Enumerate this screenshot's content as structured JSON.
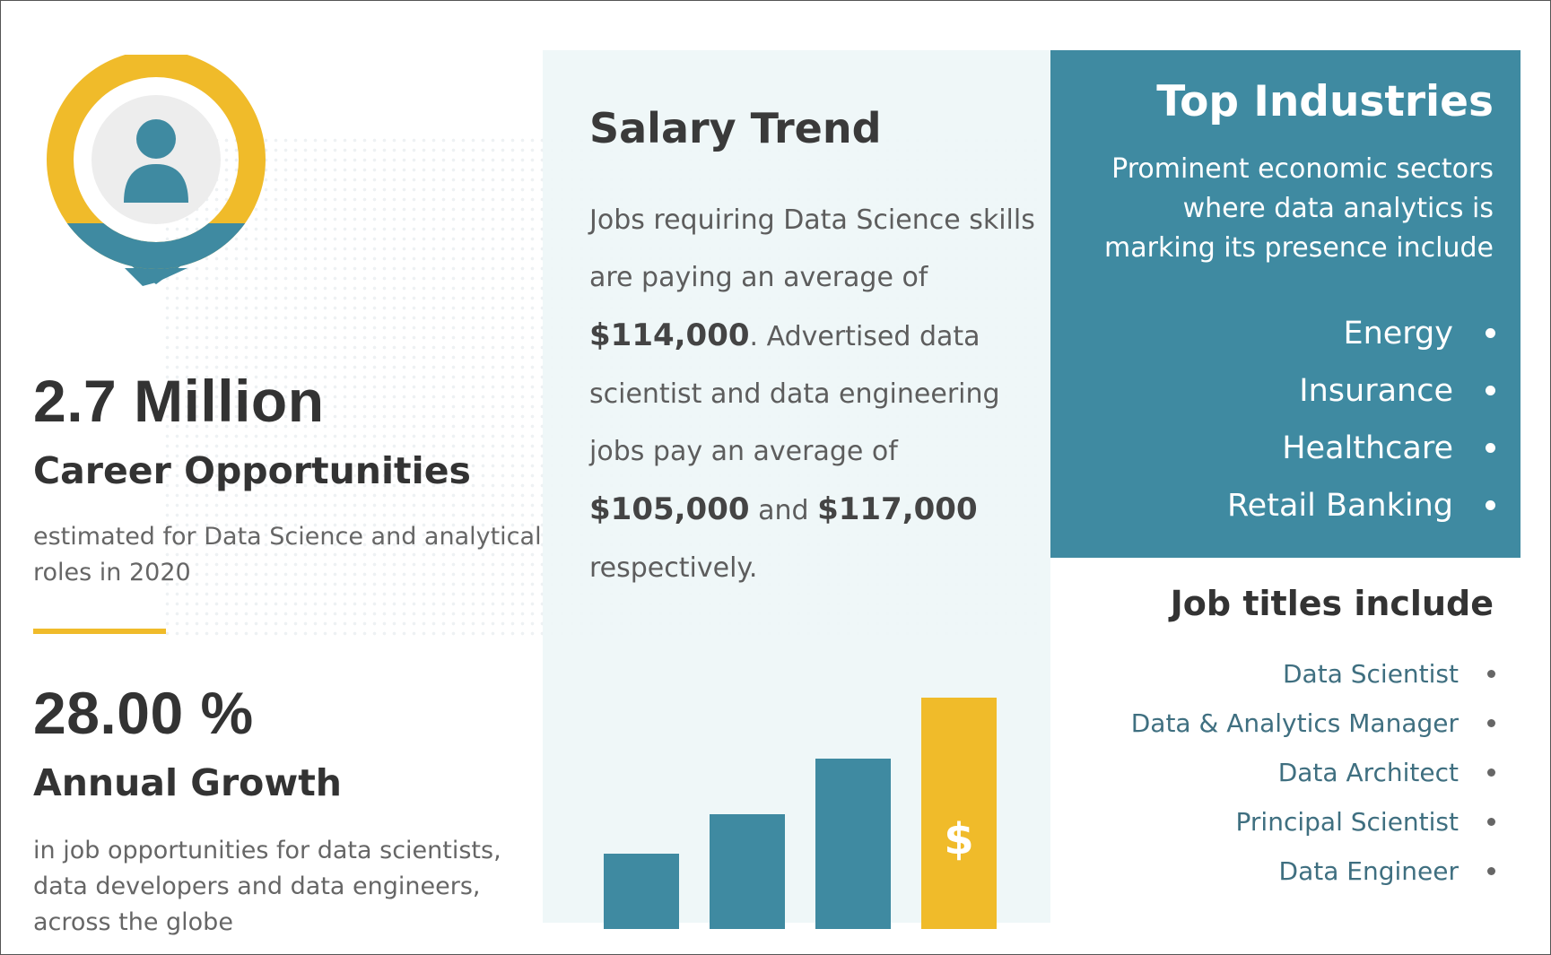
{
  "stats": [
    {
      "value": "2.7 Million",
      "title": "Career Opportunities",
      "description": "estimated for Data Science and analytical roles in 2020"
    },
    {
      "value": "28.00 %",
      "title": "Annual Growth",
      "description": "in job opportunities for data scientists, data developers and data engineers, across the globe"
    }
  ],
  "salary": {
    "title": "Salary Trend",
    "text_1": "Jobs requiring Data Science skills are paying an average of",
    "amount_1": "$114,000",
    "text_2": ". Advertised data scientist and data engineering jobs pay an average of",
    "amount_2": "$105,000",
    "text_3": "and",
    "amount_3": "$117,000",
    "text_4": "respectively.",
    "dollar_symbol": "$"
  },
  "industries": {
    "title": "Top Industries",
    "subtitle": "Prominent economic sectors where data analytics is marking its presence include",
    "items": [
      "Energy",
      "Insurance",
      "Healthcare",
      "Retail Banking"
    ]
  },
  "jobs": {
    "title": "Job titles include",
    "items": [
      "Data Scientist",
      "Data & Analytics Manager",
      "Data Architect",
      "Principal Scientist",
      "Data Engineer"
    ]
  },
  "colors": {
    "teal": "#3f8aa1",
    "gold": "#f0bb2a",
    "text_dark": "#333333",
    "text_muted": "#666666",
    "panel_light": "#eef6f7"
  },
  "icons": {
    "person": "user-location-icon",
    "bullet": "bullet-dot-icon",
    "dollar": "dollar-icon"
  }
}
